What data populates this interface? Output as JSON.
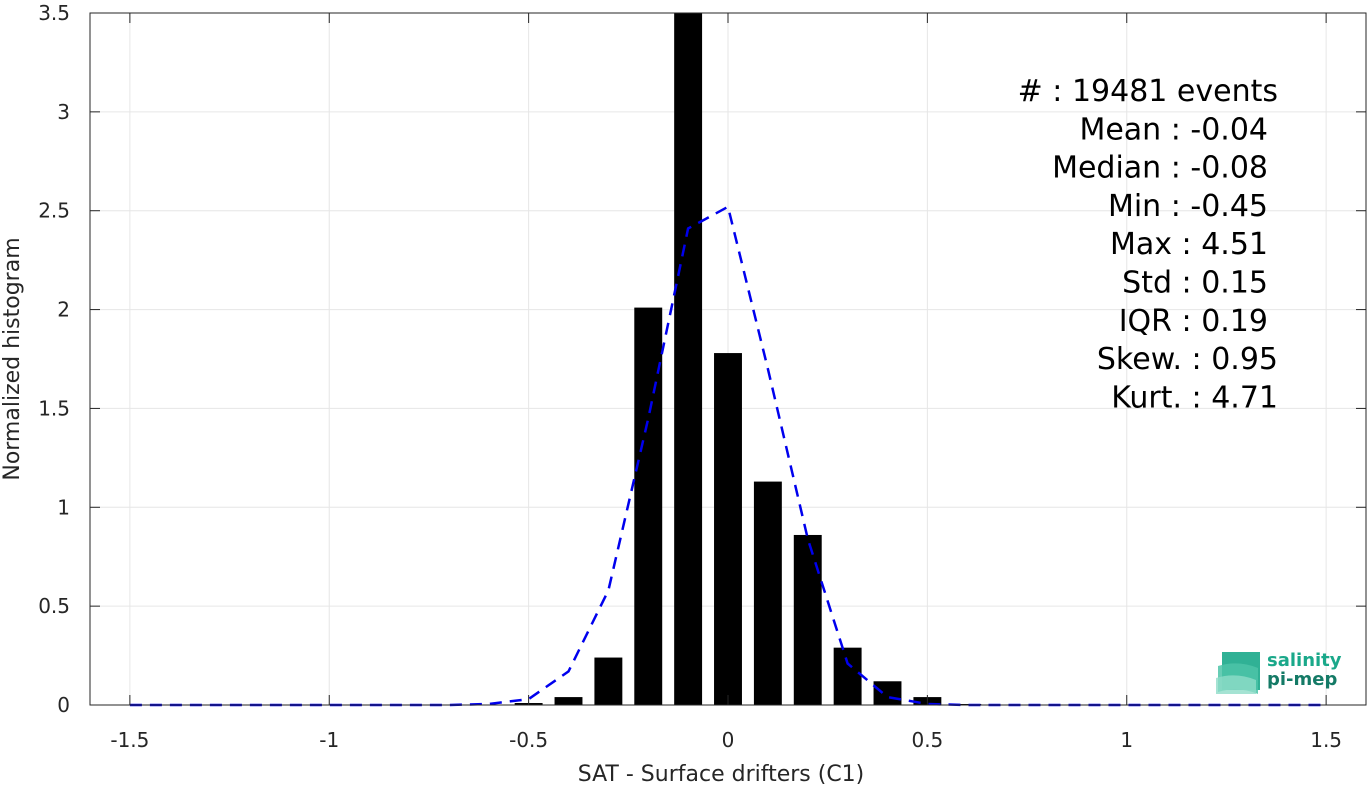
{
  "chart_data": {
    "type": "bar",
    "xlabel": "SAT - Surface drifters (C1)",
    "ylabel": "Normalized histogram",
    "xlim": [
      -1.6,
      1.6
    ],
    "ylim": [
      0,
      3.5
    ],
    "x_ticks": [
      -1.5,
      -1,
      -0.5,
      0,
      0.5,
      1,
      1.5
    ],
    "x_tick_labels": [
      "-1.5",
      "-1",
      "-0.5",
      "0",
      "0.5",
      "1",
      "1.5"
    ],
    "y_ticks": [
      0,
      0.5,
      1,
      1.5,
      2,
      2.5,
      3,
      3.5
    ],
    "y_tick_labels": [
      "0",
      "0.5",
      "1",
      "1.5",
      "2",
      "2.5",
      "3",
      "3.5"
    ],
    "grid": true,
    "bar_width": 0.07,
    "series": [
      {
        "type": "bar",
        "color": "#000000",
        "x": [
          -0.5,
          -0.4,
          -0.3,
          -0.2,
          -0.1,
          0.0,
          0.1,
          0.2,
          0.3,
          0.4,
          0.5,
          0.6
        ],
        "values": [
          0.01,
          0.04,
          0.24,
          2.01,
          3.5,
          1.78,
          1.13,
          0.86,
          0.29,
          0.12,
          0.04,
          0.005
        ]
      },
      {
        "type": "line",
        "style": "dashed",
        "color": "#0000ee",
        "x": [
          -1.5,
          -1.4,
          -1.3,
          -1.2,
          -1.1,
          -1.0,
          -0.9,
          -0.8,
          -0.7,
          -0.6,
          -0.5,
          -0.4,
          -0.3,
          -0.2,
          -0.1,
          0.0,
          0.1,
          0.2,
          0.3,
          0.4,
          0.5,
          0.6,
          0.7,
          0.8,
          0.9,
          1.0,
          1.1,
          1.2,
          1.3,
          1.4,
          1.5
        ],
        "values": [
          0,
          0,
          0,
          0,
          0,
          0,
          0,
          0,
          0,
          0.005,
          0.03,
          0.17,
          0.58,
          1.45,
          2.41,
          2.52,
          1.7,
          0.84,
          0.21,
          0.04,
          0.005,
          0,
          0,
          0,
          0,
          0,
          0,
          0,
          0,
          0,
          0
        ]
      }
    ],
    "stats": [
      "#  : 19481 events",
      "Mean : -0.04",
      "Median : -0.08",
      "Min : -0.45",
      "Max : 4.51",
      "Std : 0.15",
      "IQR : 0.19",
      "Skew. : 0.95",
      "Kurt. : 4.71"
    ]
  },
  "logo": {
    "line1": "salinity",
    "line2": "pi-mep",
    "color": "#1aa88a"
  }
}
